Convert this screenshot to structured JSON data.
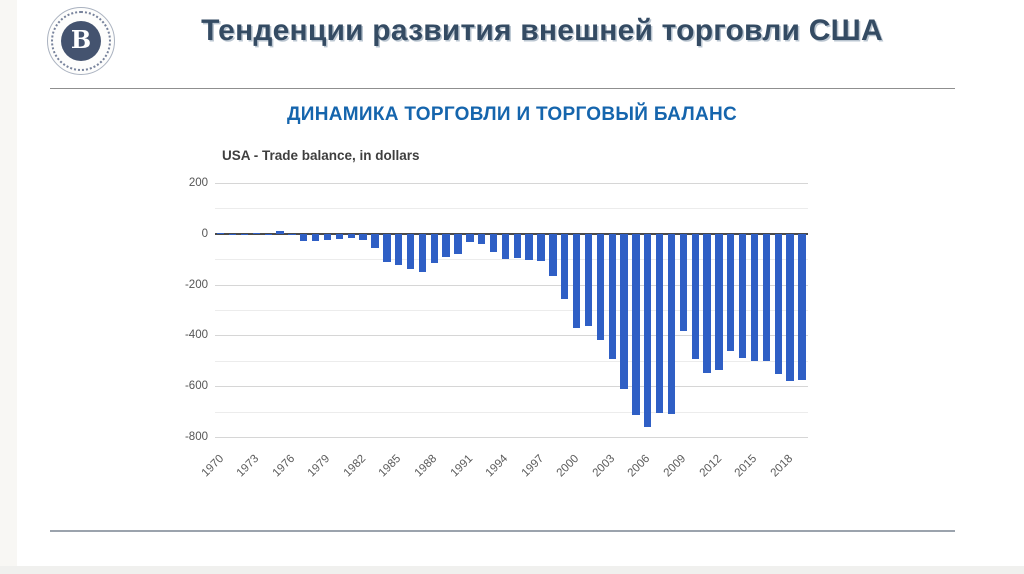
{
  "slide": {
    "title": "Тенденции развития внешней торговли США",
    "subtitle": "ДИНАМИКА ТОРГОВЛИ И ТОРГОВЫЙ БАЛАНС",
    "logo_icon": "hse-university-emblem-icon",
    "logo_monogram": "В"
  },
  "colors": {
    "title": "#344b63",
    "subtitle": "#1565ad",
    "bar": "#2f5fc5",
    "grid_major": "#d6d6d6",
    "grid_minor": "#ececec",
    "zero_line": "#4a4a4a",
    "logo_navy": "#44536f"
  },
  "chart_data": {
    "type": "bar",
    "title": "USA - Trade balance, in dollars",
    "xlabel": "",
    "ylabel": "",
    "ylim": [
      -800,
      200
    ],
    "ytick_interval": 200,
    "minor_grid_interval": 100,
    "grid": "on",
    "legend": "none",
    "bar_color": "#2f5fc5",
    "ytick_labels": [
      "200",
      "0",
      "-200",
      "-400",
      "-600",
      "-800"
    ],
    "xtick_labels": [
      "1970",
      "1973",
      "1976",
      "1979",
      "1982",
      "1985",
      "1988",
      "1991",
      "1994",
      "1997",
      "2000",
      "2003",
      "2006",
      "2009",
      "2012",
      "2015",
      "2018"
    ],
    "x": [
      1970,
      1971,
      1972,
      1973,
      1974,
      1975,
      1976,
      1977,
      1978,
      1979,
      1980,
      1981,
      1982,
      1983,
      1984,
      1985,
      1986,
      1987,
      1988,
      1989,
      1990,
      1991,
      1992,
      1993,
      1994,
      1995,
      1996,
      1997,
      1998,
      1999,
      2000,
      2001,
      2002,
      2003,
      2004,
      2005,
      2006,
      2007,
      2008,
      2009,
      2010,
      2011,
      2012,
      2013,
      2014,
      2015,
      2016,
      2017,
      2018,
      2019
    ],
    "values": [
      2.3,
      -1.3,
      -5.4,
      1.9,
      -4.3,
      12.4,
      -6.1,
      -27.2,
      -29.8,
      -24.6,
      -19.4,
      -16.2,
      -24.2,
      -57.8,
      -109.1,
      -121.9,
      -138.5,
      -151.7,
      -114.6,
      -93.1,
      -80.9,
      -31.1,
      -39.2,
      -70.3,
      -98.5,
      -96.4,
      -104.1,
      -108.3,
      -166.1,
      -258.6,
      -372.5,
      -361.5,
      -418.9,
      -493.9,
      -609.9,
      -714.2,
      -761.7,
      -705.4,
      -708.7,
      -383.8,
      -494.7,
      -548.6,
      -536.8,
      -461.9,
      -490.2,
      -500.4,
      -502.0,
      -552.3,
      -579.9,
      -576.9
    ]
  }
}
